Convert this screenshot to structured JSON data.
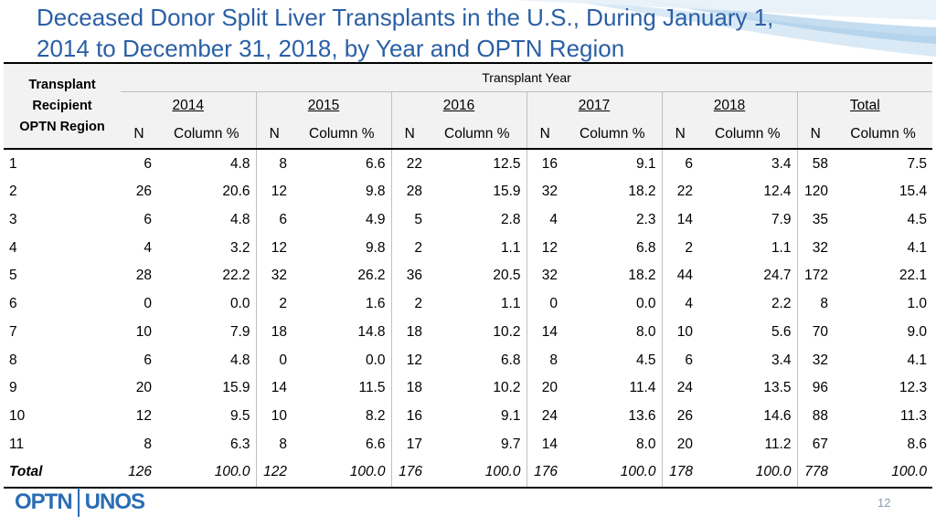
{
  "title": {
    "line1": "Deceased Donor Split Liver Transplants in the U.S., During January 1,",
    "line2": "2014 to December 31, 2018, by Year and OPTN Region"
  },
  "table": {
    "corner_label": [
      "Transplant",
      "Recipient",
      "OPTN Region"
    ],
    "group_header": "Transplant Year",
    "years": [
      "2014",
      "2015",
      "2016",
      "2017",
      "2018",
      "Total"
    ],
    "sub_n": "N",
    "sub_pct": "Column %",
    "rows": [
      {
        "region": "1",
        "cells": [
          "6",
          "4.8",
          "8",
          "6.6",
          "22",
          "12.5",
          "16",
          "9.1",
          "6",
          "3.4",
          "58",
          "7.5"
        ]
      },
      {
        "region": "2",
        "cells": [
          "26",
          "20.6",
          "12",
          "9.8",
          "28",
          "15.9",
          "32",
          "18.2",
          "22",
          "12.4",
          "120",
          "15.4"
        ]
      },
      {
        "region": "3",
        "cells": [
          "6",
          "4.8",
          "6",
          "4.9",
          "5",
          "2.8",
          "4",
          "2.3",
          "14",
          "7.9",
          "35",
          "4.5"
        ]
      },
      {
        "region": "4",
        "cells": [
          "4",
          "3.2",
          "12",
          "9.8",
          "2",
          "1.1",
          "12",
          "6.8",
          "2",
          "1.1",
          "32",
          "4.1"
        ]
      },
      {
        "region": "5",
        "cells": [
          "28",
          "22.2",
          "32",
          "26.2",
          "36",
          "20.5",
          "32",
          "18.2",
          "44",
          "24.7",
          "172",
          "22.1"
        ]
      },
      {
        "region": "6",
        "cells": [
          "0",
          "0.0",
          "2",
          "1.6",
          "2",
          "1.1",
          "0",
          "0.0",
          "4",
          "2.2",
          "8",
          "1.0"
        ]
      },
      {
        "region": "7",
        "cells": [
          "10",
          "7.9",
          "18",
          "14.8",
          "18",
          "10.2",
          "14",
          "8.0",
          "10",
          "5.6",
          "70",
          "9.0"
        ]
      },
      {
        "region": "8",
        "cells": [
          "6",
          "4.8",
          "0",
          "0.0",
          "12",
          "6.8",
          "8",
          "4.5",
          "6",
          "3.4",
          "32",
          "4.1"
        ]
      },
      {
        "region": "9",
        "cells": [
          "20",
          "15.9",
          "14",
          "11.5",
          "18",
          "10.2",
          "20",
          "11.4",
          "24",
          "13.5",
          "96",
          "12.3"
        ]
      },
      {
        "region": "10",
        "cells": [
          "12",
          "9.5",
          "10",
          "8.2",
          "16",
          "9.1",
          "24",
          "13.6",
          "26",
          "14.6",
          "88",
          "11.3"
        ]
      },
      {
        "region": "11",
        "cells": [
          "8",
          "6.3",
          "8",
          "6.6",
          "17",
          "9.7",
          "14",
          "8.0",
          "20",
          "11.2",
          "67",
          "8.6"
        ]
      }
    ],
    "total_row": {
      "region": "Total",
      "cells": [
        "126",
        "100.0",
        "122",
        "100.0",
        "176",
        "100.0",
        "176",
        "100.0",
        "178",
        "100.0",
        "778",
        "100.0"
      ]
    }
  },
  "footer": {
    "logo_left": "OPTN",
    "logo_right": "UNOS",
    "page_number": "12"
  },
  "colors": {
    "title": "#2a5fa5",
    "logo": "#2a6db5",
    "header_bg": "#f2f2f2"
  }
}
